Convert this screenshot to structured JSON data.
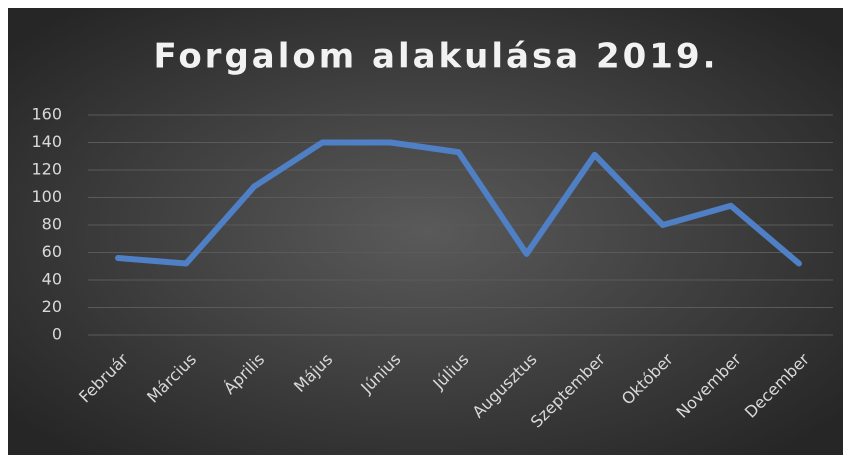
{
  "chart_data": {
    "type": "line",
    "title": "Forgalom alakulása 2019.",
    "categories": [
      "Február",
      "Március",
      "Április",
      "Május",
      "Június",
      "Július",
      "Augusztus",
      "Szeptember",
      "Október",
      "November",
      "December"
    ],
    "series": [
      {
        "color": "#4f7fc4",
        "values": [
          56,
          52,
          108,
          140,
          140,
          133,
          59,
          131,
          80,
          94,
          52
        ]
      }
    ],
    "ylim": [
      0,
      160
    ],
    "yticks": [
      0,
      20,
      40,
      60,
      80,
      100,
      120,
      140,
      160
    ],
    "grid": true
  }
}
